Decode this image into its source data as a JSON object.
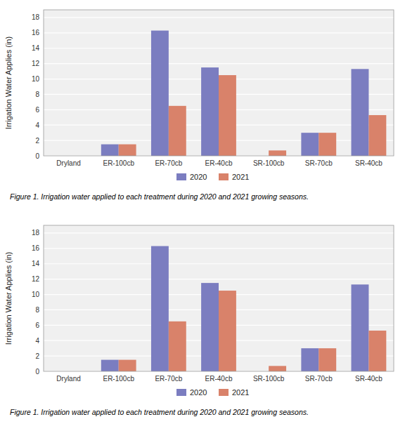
{
  "chart_data": [
    {
      "type": "bar",
      "categories": [
        "Dryland",
        "ER-100cb",
        "ER-70cb",
        "ER-40cb",
        "SR-100cb",
        "SR-70cb",
        "SR-40cb"
      ],
      "series": [
        {
          "name": "2020",
          "color": "#7B7DC0",
          "values": [
            0,
            1.5,
            16.3,
            11.5,
            0,
            3.0,
            11.3
          ]
        },
        {
          "name": "2021",
          "color": "#D9826A",
          "values": [
            0,
            1.5,
            6.5,
            10.5,
            0.7,
            3.0,
            5.3
          ]
        }
      ],
      "y_label": "Irrigation Water Applies (in)",
      "ylim": [
        0,
        19
      ],
      "yticks": [
        0,
        2,
        4,
        6,
        8,
        10,
        12,
        14,
        16,
        18
      ],
      "grid": true,
      "legend": "bottom",
      "caption": "Figure 1. Irrigation water applied to each treatment during 2020 and 2021 growing seasons."
    },
    {
      "type": "bar",
      "categories": [
        "Dryland",
        "ER-100cb",
        "ER-70cb",
        "ER-40cb",
        "SR-100cb",
        "SR-70cb",
        "SR-40cb"
      ],
      "series": [
        {
          "name": "2020",
          "color": "#7B7DC0",
          "values": [
            0,
            1.5,
            16.3,
            11.5,
            0,
            3.0,
            11.3
          ]
        },
        {
          "name": "2021",
          "color": "#D9826A",
          "values": [
            0,
            1.5,
            6.5,
            10.5,
            0.7,
            3.0,
            5.3
          ]
        }
      ],
      "y_label": "Irrigation Water Applies (in)",
      "ylim": [
        0,
        19
      ],
      "yticks": [
        0,
        2,
        4,
        6,
        8,
        10,
        12,
        14,
        16,
        18
      ],
      "grid": true,
      "legend": "bottom",
      "caption": "Figure 1. Irrigation water applied to each treatment during 2020 and 2021 growing seasons."
    }
  ]
}
